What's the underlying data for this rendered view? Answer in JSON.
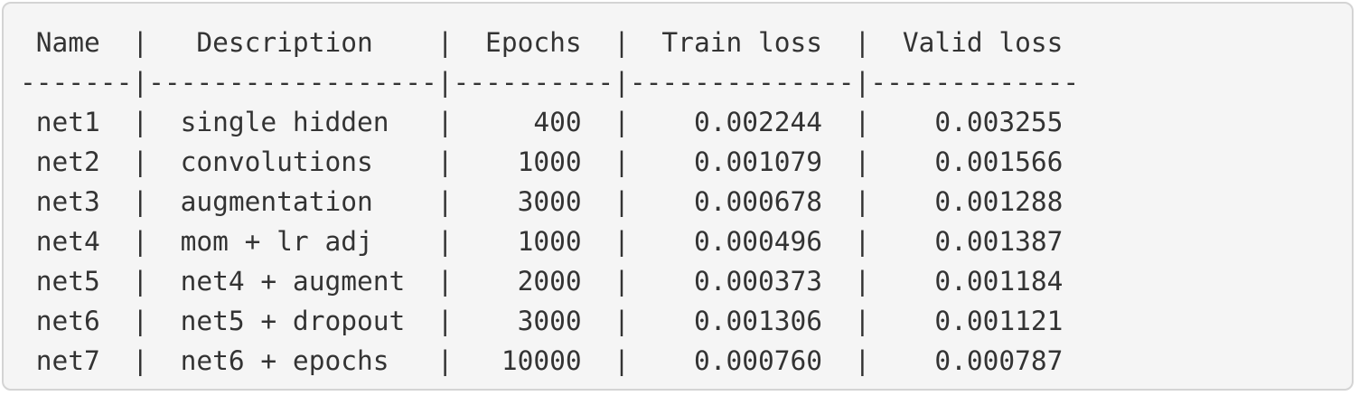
{
  "code_block": {
    "lines": [
      " Name  |   Description    |  Epochs  |  Train loss  |  Valid loss",
      "-------|------------------|----------|--------------|-------------",
      " net1  |  single hidden   |     400  |    0.002244  |    0.003255",
      " net2  |  convolutions    |    1000  |    0.001079  |    0.001566",
      " net3  |  augmentation    |    3000  |    0.000678  |    0.001288",
      " net4  |  mom + lr adj    |    1000  |    0.000496  |    0.001387",
      " net5  |  net4 + augment  |    2000  |    0.000373  |    0.001184",
      " net6  |  net5 + dropout  |    3000  |    0.001306  |    0.001121",
      " net7  |  net6 + epochs   |   10000  |    0.000760  |    0.000787"
    ]
  }
}
